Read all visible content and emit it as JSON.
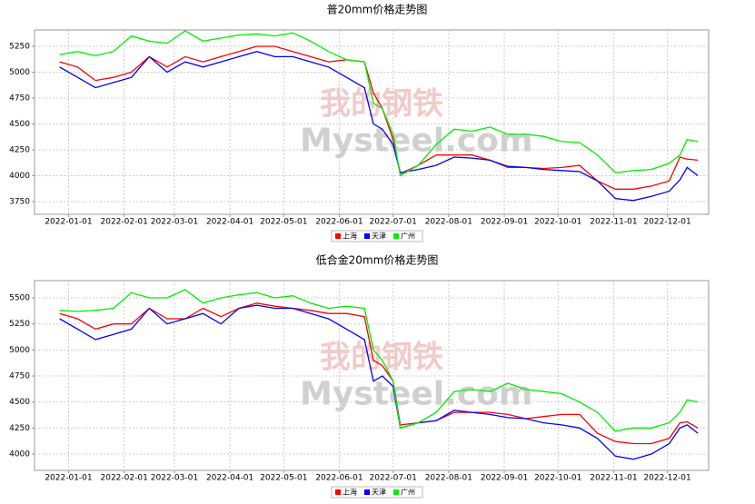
{
  "watermark": {
    "cn": "我的钢铁",
    "en": "Mysteel.com"
  },
  "chart_data": [
    {
      "type": "line",
      "title": "普20mm价格走势图",
      "x": [
        "2021-12-27",
        "2022-01-06",
        "2022-01-16",
        "2022-01-26",
        "2022-02-05",
        "2022-02-15",
        "2022-02-25",
        "2022-03-07",
        "2022-03-17",
        "2022-03-27",
        "2022-04-06",
        "2022-04-16",
        "2022-04-26",
        "2022-05-06",
        "2022-05-16",
        "2022-05-26",
        "2022-06-05",
        "2022-06-15",
        "2022-06-20",
        "2022-06-25",
        "2022-07-01",
        "2022-07-05",
        "2022-07-15",
        "2022-07-25",
        "2022-08-04",
        "2022-08-14",
        "2022-08-24",
        "2022-09-03",
        "2022-09-13",
        "2022-09-23",
        "2022-10-03",
        "2022-10-13",
        "2022-10-23",
        "2022-11-02",
        "2022-11-12",
        "2022-11-22",
        "2022-12-02",
        "2022-12-08",
        "2022-12-12",
        "2022-12-18"
      ],
      "series": [
        {
          "name": "上海",
          "color": "#ff0000",
          "values": [
            5100,
            5050,
            4920,
            4950,
            5000,
            5150,
            5050,
            5150,
            5100,
            5150,
            5200,
            5250,
            5250,
            5200,
            5150,
            5100,
            5120,
            5100,
            4800,
            4650,
            4350,
            4020,
            4100,
            4200,
            4200,
            4200,
            4150,
            4080,
            4080,
            4070,
            4080,
            4100,
            3950,
            3870,
            3870,
            3900,
            3950,
            4180,
            4160,
            4150
          ]
        },
        {
          "name": "天津",
          "color": "#0000ff",
          "values": [
            5050,
            4950,
            4850,
            4900,
            4950,
            5150,
            5000,
            5100,
            5050,
            5100,
            5150,
            5200,
            5150,
            5150,
            5100,
            5050,
            4950,
            4850,
            4500,
            4450,
            4300,
            4030,
            4060,
            4100,
            4180,
            4170,
            4150,
            4090,
            4080,
            4060,
            4050,
            4040,
            3950,
            3780,
            3760,
            3800,
            3850,
            3960,
            4080,
            4000
          ]
        },
        {
          "name": "广州",
          "color": "#00ee00",
          "values": [
            5170,
            5200,
            5160,
            5200,
            5350,
            5300,
            5280,
            5400,
            5300,
            5330,
            5360,
            5370,
            5350,
            5380,
            5300,
            5200,
            5120,
            5100,
            4700,
            4650,
            4400,
            4000,
            4100,
            4300,
            4450,
            4430,
            4470,
            4400,
            4400,
            4380,
            4330,
            4320,
            4200,
            4030,
            4050,
            4060,
            4120,
            4200,
            4350,
            4330
          ]
        }
      ],
      "xlim": [
        "2021-12-13",
        "2022-12-24"
      ],
      "xticks": [
        "2022-01-01",
        "2022-02-01",
        "2022-03-01",
        "2022-04-01",
        "2022-05-01",
        "2022-06-01",
        "2022-07-01",
        "2022-08-01",
        "2022-09-01",
        "2022-10-01",
        "2022-11-01",
        "2022-12-01"
      ],
      "ylim": [
        3627,
        5408
      ],
      "yticks": [
        3750,
        4000,
        4250,
        4500,
        4750,
        5000,
        5250
      ],
      "grid": true,
      "legend": "bottom"
    },
    {
      "type": "line",
      "title": "低合金20mm价格走势图",
      "x": [
        "2021-12-27",
        "2022-01-06",
        "2022-01-16",
        "2022-01-26",
        "2022-02-05",
        "2022-02-15",
        "2022-02-25",
        "2022-03-07",
        "2022-03-17",
        "2022-03-27",
        "2022-04-06",
        "2022-04-16",
        "2022-04-26",
        "2022-05-06",
        "2022-05-16",
        "2022-05-26",
        "2022-06-05",
        "2022-06-15",
        "2022-06-20",
        "2022-06-25",
        "2022-07-01",
        "2022-07-05",
        "2022-07-15",
        "2022-07-25",
        "2022-08-04",
        "2022-08-14",
        "2022-08-24",
        "2022-09-03",
        "2022-09-13",
        "2022-09-23",
        "2022-10-03",
        "2022-10-13",
        "2022-10-23",
        "2022-11-02",
        "2022-11-12",
        "2022-11-22",
        "2022-12-02",
        "2022-12-08",
        "2022-12-12",
        "2022-12-18"
      ],
      "series": [
        {
          "name": "上海",
          "color": "#ff0000",
          "values": [
            5350,
            5300,
            5200,
            5250,
            5250,
            5400,
            5300,
            5300,
            5400,
            5320,
            5400,
            5450,
            5420,
            5400,
            5380,
            5350,
            5350,
            5320,
            4900,
            4850,
            4700,
            4280,
            4300,
            4320,
            4400,
            4400,
            4400,
            4380,
            4340,
            4360,
            4380,
            4380,
            4200,
            4120,
            4100,
            4100,
            4150,
            4300,
            4310,
            4250
          ]
        },
        {
          "name": "天津",
          "color": "#0000ff",
          "values": [
            5300,
            5200,
            5100,
            5150,
            5200,
            5400,
            5250,
            5300,
            5350,
            5250,
            5400,
            5430,
            5400,
            5400,
            5350,
            5300,
            5200,
            5100,
            4700,
            4750,
            4650,
            4250,
            4300,
            4320,
            4420,
            4400,
            4380,
            4350,
            4340,
            4300,
            4280,
            4250,
            4150,
            3980,
            3950,
            4000,
            4100,
            4250,
            4280,
            4200
          ]
        },
        {
          "name": "广州",
          "color": "#00ee00",
          "values": [
            5380,
            5370,
            5380,
            5400,
            5550,
            5500,
            5500,
            5580,
            5450,
            5500,
            5530,
            5550,
            5500,
            5520,
            5450,
            5400,
            5420,
            5400,
            5000,
            4900,
            4700,
            4250,
            4300,
            4400,
            4600,
            4620,
            4600,
            4680,
            4620,
            4600,
            4580,
            4500,
            4400,
            4220,
            4250,
            4250,
            4300,
            4400,
            4520,
            4500
          ]
        }
      ],
      "xlim": [
        "2021-12-13",
        "2022-12-24"
      ],
      "xticks": [
        "2022-01-01",
        "2022-02-01",
        "2022-03-01",
        "2022-04-01",
        "2022-05-01",
        "2022-06-01",
        "2022-07-01",
        "2022-08-01",
        "2022-09-01",
        "2022-10-01",
        "2022-11-01",
        "2022-12-01"
      ],
      "ylim": [
        3843,
        5666
      ],
      "yticks": [
        4000,
        4250,
        4500,
        4750,
        5000,
        5250,
        5500
      ],
      "grid": true,
      "legend": "bottom"
    }
  ]
}
